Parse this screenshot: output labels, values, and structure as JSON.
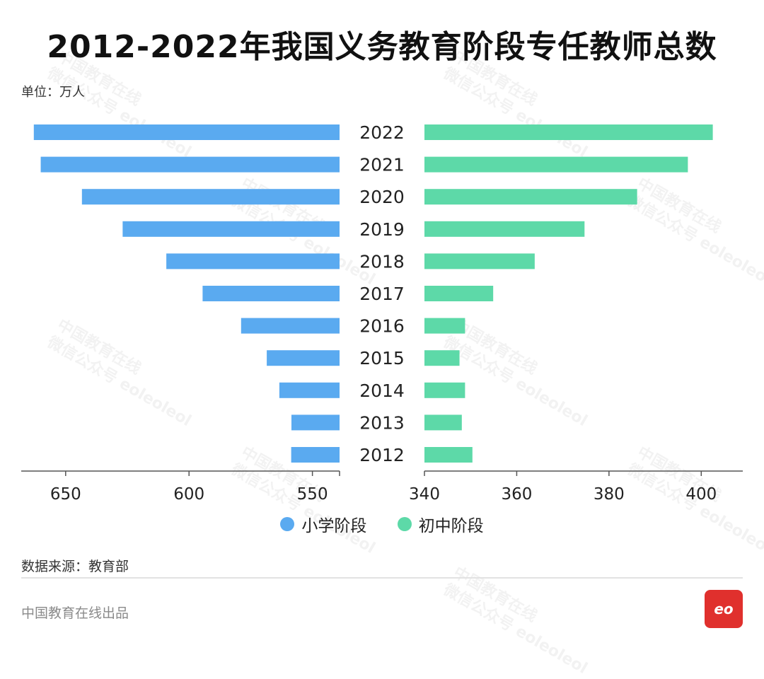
{
  "title": "2012-2022年我国义务教育阶段专任教师总数",
  "unit": "单位：万人",
  "source": "数据来源：教育部",
  "footer": "中国教育在线出品",
  "logo_text": "eo",
  "watermark": [
    "中国教育在线",
    "微信公众号 eoleoleol"
  ],
  "colors": {
    "primary": "#5aaaf0",
    "middle": "#5dd9a8",
    "axis": "#555555"
  },
  "chart_data": {
    "type": "bar",
    "title": "2012-2022年我国义务教育阶段专任教师总数",
    "categories": [
      "2022",
      "2021",
      "2020",
      "2019",
      "2018",
      "2017",
      "2016",
      "2015",
      "2014",
      "2013",
      "2012"
    ],
    "series": [
      {
        "name": "小学阶段",
        "values": [
          662.9,
          660.1,
          643.4,
          626.9,
          609.2,
          594.5,
          578.9,
          568.5,
          563.4,
          558.5,
          558.6
        ]
      },
      {
        "name": "初中阶段",
        "values": [
          402.5,
          397.1,
          386.1,
          374.7,
          363.9,
          354.9,
          348.8,
          347.6,
          348.8,
          348.1,
          350.4
        ]
      }
    ],
    "xlim_left": [
      668,
      539
    ],
    "xticks_left": [
      650,
      600,
      550
    ],
    "xlim_right": [
      340,
      409
    ],
    "xticks_right": [
      340,
      360,
      380,
      400
    ],
    "legend": "bottom-center"
  }
}
